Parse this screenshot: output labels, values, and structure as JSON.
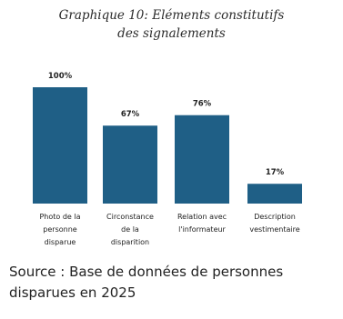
{
  "chart_data": {
    "type": "bar",
    "title": "Graphique 10: Eléments constitutifs des signalements",
    "title_lines": [
      "Graphique 10: Eléments constitutifs",
      "des signalements"
    ],
    "categories": [
      "Photo de la personne disparue",
      "Circonstance de la disparition",
      "Relation avec l'informateur",
      "Description vestimentaire"
    ],
    "category_lines": [
      [
        "Photo de la",
        "personne",
        "disparue"
      ],
      [
        "Circonstance",
        "de la",
        "disparition"
      ],
      [
        "Relation avec",
        "l'informateur"
      ],
      [
        "Description",
        "vestimentaire"
      ]
    ],
    "values": [
      100,
      67,
      76,
      17
    ],
    "data_labels": [
      "100%",
      "67%",
      "76%",
      "17%"
    ],
    "ylim": [
      0,
      100
    ],
    "xlabel": "",
    "ylabel": "",
    "grid": false,
    "bar_color": "#1f5f86"
  },
  "source": {
    "line1": "Source : Base de données de personnes",
    "line2": "disparues en 2025"
  }
}
